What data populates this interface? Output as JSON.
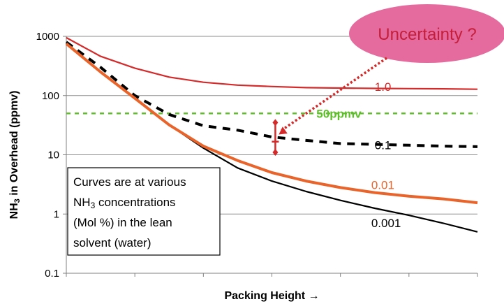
{
  "chart_data": {
    "type": "line",
    "xlabel": "Packing Height →",
    "ylabel_main": "NH",
    "ylabel_sub": "3",
    "ylabel_rest": " in Overhead (ppmv)",
    "yscale": "log",
    "ylim": [
      0.1,
      1000
    ],
    "xlim": [
      0,
      6
    ],
    "y_ticks": [
      "0.1",
      "1",
      "10",
      "100",
      "1000"
    ],
    "y_tick_values": [
      0.1,
      1,
      10,
      100,
      1000
    ],
    "x_ticks": [
      0,
      1,
      2,
      3,
      4,
      5,
      6
    ],
    "grid": "horizontal",
    "colors": {
      "s1": "#d42a2a",
      "s01": "#000000",
      "s001": "#e8642a",
      "s0001": "#000000",
      "limit": "#5fbf2a",
      "uncertainty": "#d42a2a",
      "callout_fill": "#e56a9e",
      "callout_text": "#c41e3a",
      "grid": "#8c8c8c"
    },
    "series": [
      {
        "name": "1.0",
        "style": "solid",
        "x": [
          0,
          0.5,
          1,
          1.5,
          2,
          2.5,
          3,
          3.5,
          4,
          4.5,
          5,
          5.5,
          6
        ],
        "y": [
          950,
          460,
          290,
          205,
          168,
          150,
          142,
          136,
          134,
          132,
          131,
          130,
          128
        ]
      },
      {
        "name": "0.1",
        "style": "dashed",
        "x": [
          0,
          0.5,
          1,
          1.5,
          2,
          2.5,
          3,
          3.5,
          4,
          4.5,
          5,
          5.5,
          6
        ],
        "y": [
          800,
          300,
          100,
          48,
          31,
          26,
          20,
          17.5,
          15.5,
          15,
          14.5,
          14,
          13.7
        ]
      },
      {
        "name": "0.01",
        "style": "solid",
        "x": [
          0,
          0.5,
          1,
          1.5,
          2,
          2.5,
          3,
          3.5,
          4,
          4.5,
          5,
          5.5,
          6
        ],
        "y": [
          750,
          250,
          90,
          32,
          14,
          8,
          5,
          3.6,
          2.8,
          2.3,
          2.0,
          1.8,
          1.55
        ]
      },
      {
        "name": "0.001",
        "style": "solid",
        "x": [
          0,
          0.5,
          1,
          1.5,
          2,
          2.5,
          3,
          3.5,
          4,
          4.5,
          5,
          5.5,
          6
        ],
        "y": [
          750,
          250,
          90,
          32,
          13,
          6,
          3.6,
          2.4,
          1.7,
          1.25,
          0.95,
          0.7,
          0.5
        ]
      }
    ],
    "series_labels": [
      {
        "text": "1.0",
        "x": 4.5,
        "y": 120
      },
      {
        "text": "0.1",
        "x": 4.5,
        "y": 12.5
      },
      {
        "text": "0.01",
        "x": 4.45,
        "y": 2.65
      },
      {
        "text": "0.001",
        "x": 4.45,
        "y": 0.6
      }
    ],
    "limit_line": {
      "y": 50,
      "label": "50ppmv",
      "label_x": 3.65
    },
    "uncertainty": {
      "x": 3.05,
      "y_low": 11,
      "y_high": 35
    },
    "callout": {
      "text": "Uncertainty ?",
      "arrow_to_x": 3.1,
      "arrow_to_y": 22
    },
    "annotation_lines": [
      {
        "parts": [
          "Curves are at  various"
        ]
      },
      {
        "parts": [
          "NH",
          "3",
          " concentrations"
        ]
      },
      {
        "parts": [
          "(Mol %) in the lean"
        ]
      },
      {
        "parts": [
          "solvent (water)"
        ]
      }
    ]
  }
}
